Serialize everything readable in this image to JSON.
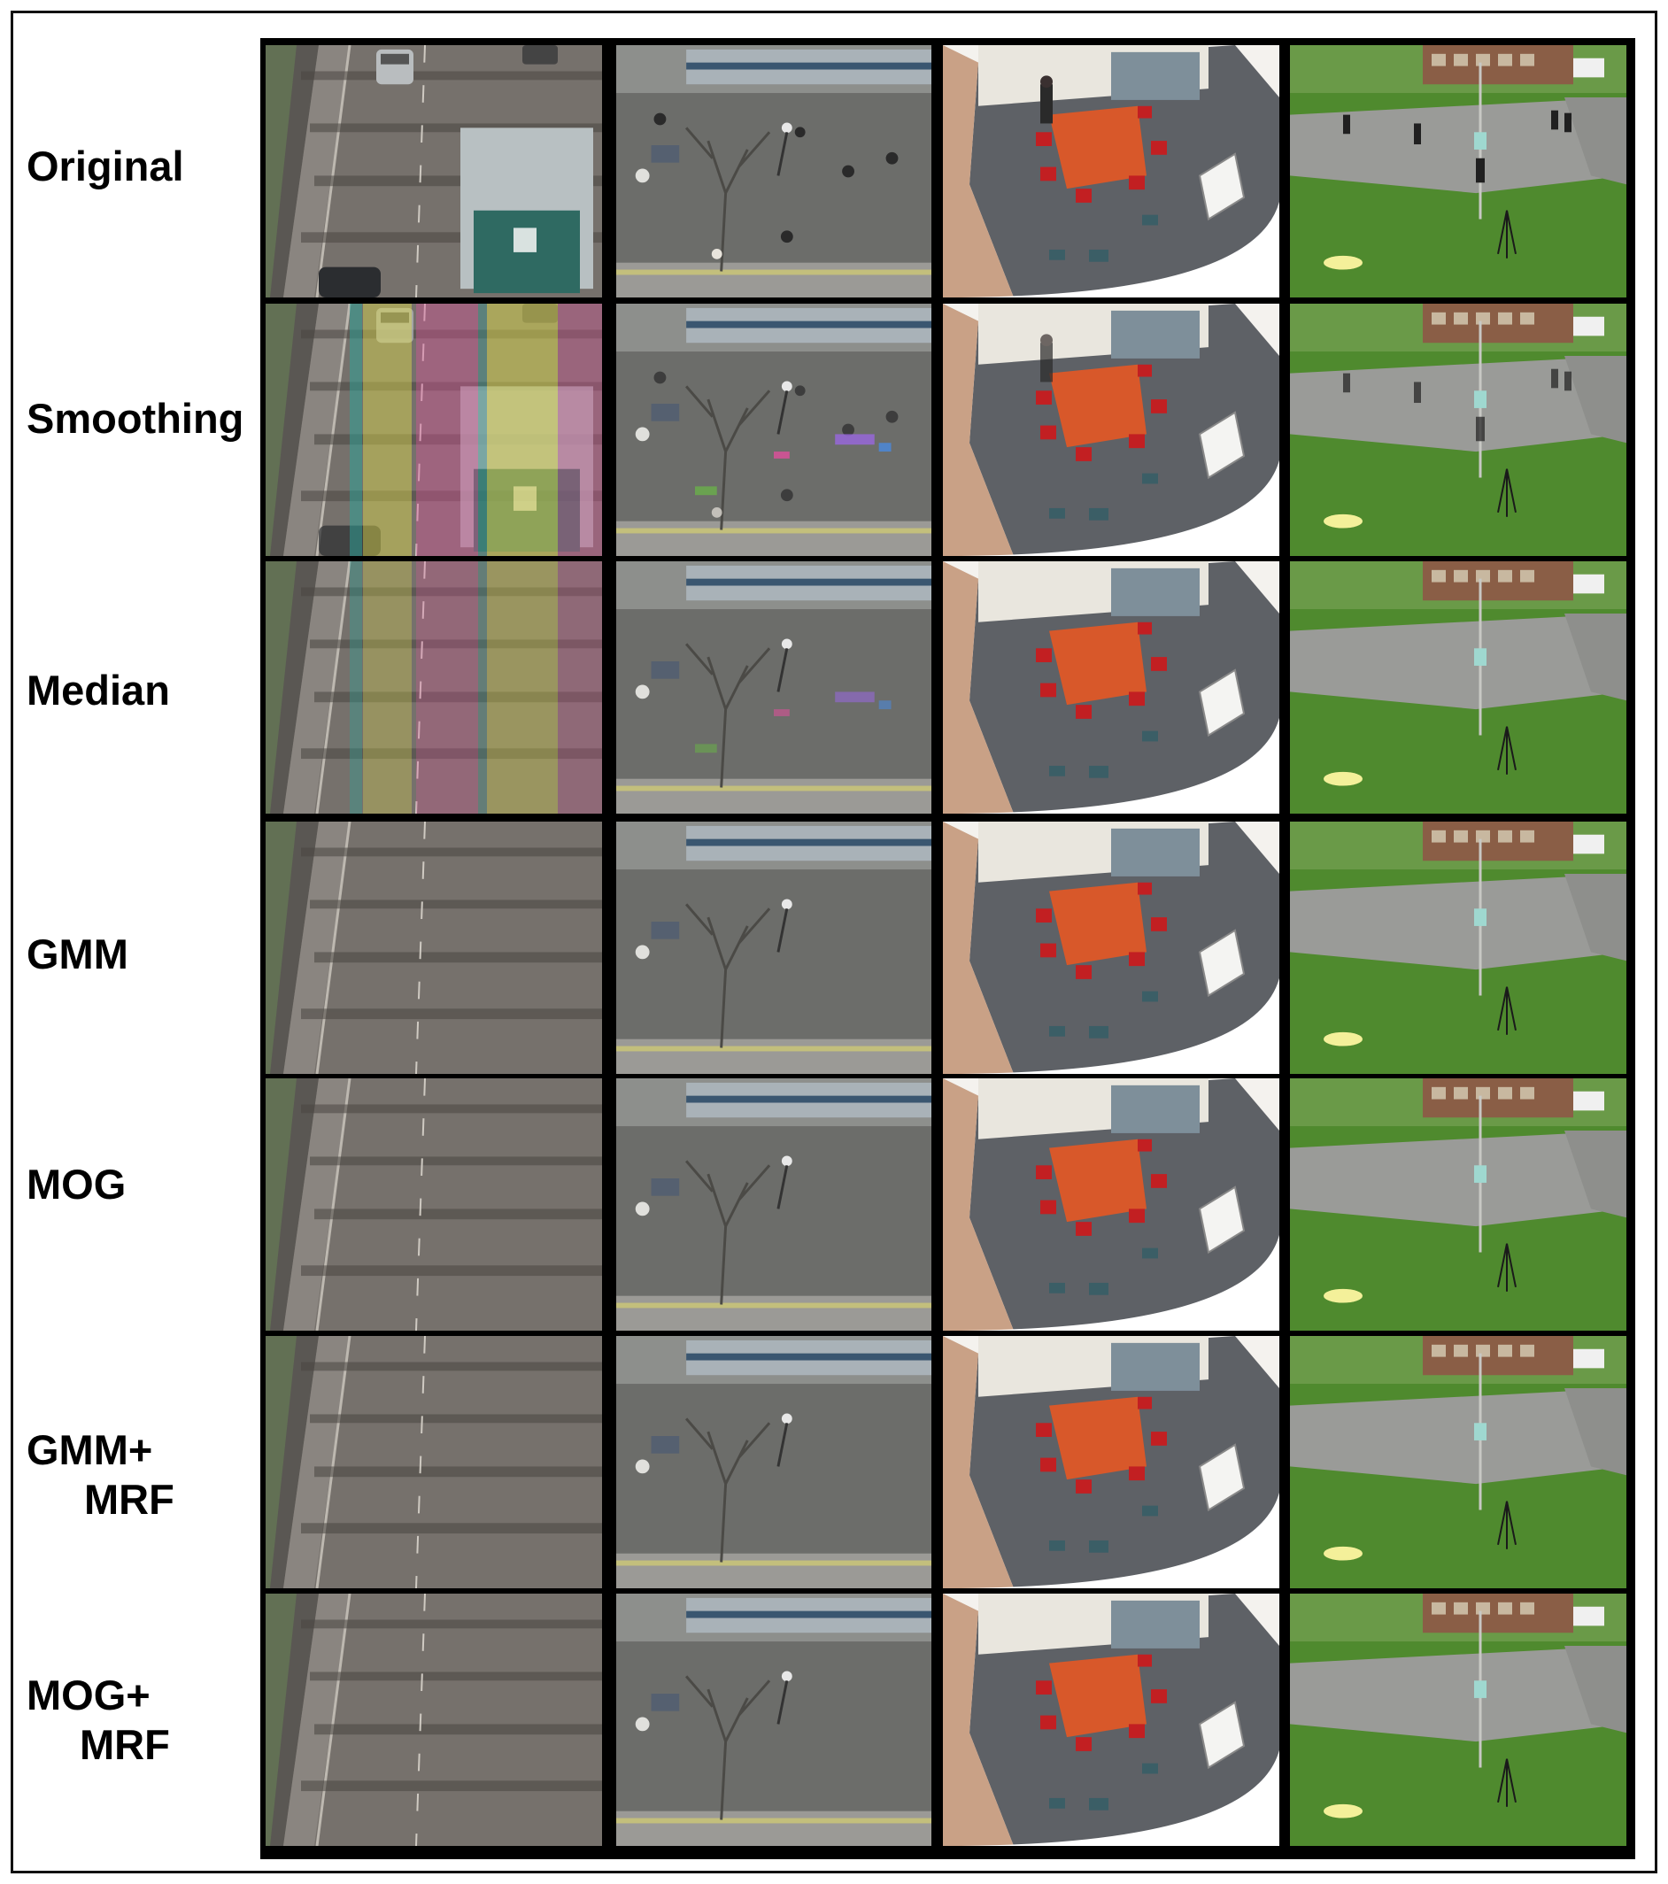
{
  "figure": {
    "row_labels": [
      {
        "line1": "Original",
        "line2": ""
      },
      {
        "line1": "Smoothing",
        "line2": ""
      },
      {
        "line1": "Median",
        "line2": ""
      },
      {
        "line1": "GMM",
        "line2": ""
      },
      {
        "line1": "MOG",
        "line2": ""
      },
      {
        "line1": "GMM+",
        "line2": "MRF"
      },
      {
        "line1": "MOG+",
        "line2": "MRF"
      }
    ],
    "columns": [
      {
        "scene": "highway",
        "icon": "highway-scene-icon"
      },
      {
        "scene": "street-overhead",
        "icon": "street-scene-icon"
      },
      {
        "scene": "meeting-room",
        "icon": "meeting-room-scene-icon"
      },
      {
        "scene": "campus-lawn",
        "icon": "campus-scene-icon"
      }
    ],
    "colors": {
      "frame": "#000000",
      "road": "#6e6a66",
      "grass": "#4f8a2e",
      "table": "#d8582a",
      "chair": "#c21f22",
      "artifact_pink": "#e0509c",
      "artifact_yellow": "#e6e24a",
      "artifact_teal": "#2aa39a"
    }
  }
}
